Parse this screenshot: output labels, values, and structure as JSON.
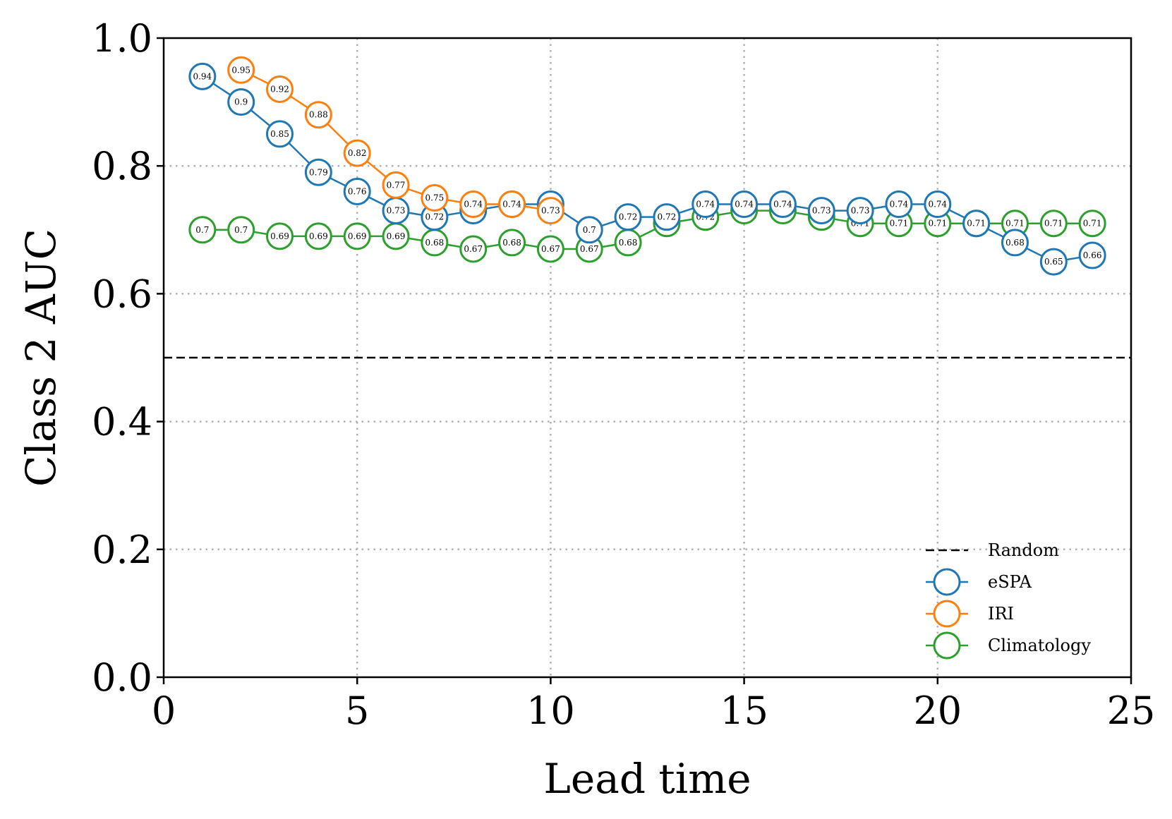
{
  "chart_data": {
    "type": "line",
    "title": "",
    "xlabel": "Lead time",
    "ylabel": "Class 2 AUC",
    "xlim": [
      0,
      25
    ],
    "ylim": [
      0.0,
      1.0
    ],
    "xticks": [
      0,
      5,
      10,
      15,
      20,
      25
    ],
    "xtick_labels": [
      "0",
      "5",
      "10",
      "15",
      "20",
      "25"
    ],
    "yticks": [
      0.0,
      0.2,
      0.4,
      0.6,
      0.8,
      1.0
    ],
    "ytick_labels": [
      "0.0",
      "0.2",
      "0.4",
      "0.6",
      "0.8",
      "1.0"
    ],
    "grid": true,
    "legend_position": "bottom-right",
    "reference_line": {
      "name": "Random",
      "y": 0.5,
      "color": "#000000",
      "style": "dashed"
    },
    "series": [
      {
        "name": "eSPA",
        "color": "#1f77b4",
        "x": [
          1,
          2,
          3,
          4,
          5,
          6,
          7,
          8,
          9,
          10,
          11,
          12,
          13,
          14,
          15,
          16,
          17,
          18,
          19,
          20,
          21,
          22,
          23,
          24
        ],
        "values": [
          0.94,
          0.9,
          0.85,
          0.79,
          0.76,
          0.73,
          0.72,
          0.73,
          0.74,
          0.74,
          0.7,
          0.72,
          0.72,
          0.74,
          0.74,
          0.74,
          0.73,
          0.73,
          0.74,
          0.74,
          0.71,
          0.68,
          0.65,
          0.66
        ],
        "labels": [
          "0.94",
          "0.9",
          "0.85",
          "0.79",
          "0.76",
          "0.73",
          "0.72",
          "0.73",
          "0.74",
          "0.74",
          "0.7",
          "0.72",
          "0.72",
          "0.74",
          "0.74",
          "0.74",
          "0.73",
          "0.73",
          "0.74",
          "0.74",
          "0.71",
          "0.68",
          "0.65",
          "0.66"
        ]
      },
      {
        "name": "IRI",
        "color": "#ff7f0e",
        "x": [
          2,
          3,
          4,
          5,
          6,
          7,
          8,
          9,
          10
        ],
        "values": [
          0.95,
          0.92,
          0.88,
          0.82,
          0.77,
          0.75,
          0.74,
          0.74,
          0.73
        ],
        "labels": [
          "0.95",
          "0.92",
          "0.88",
          "0.82",
          "0.77",
          "0.75",
          "0.74",
          "0.74",
          "0.73"
        ]
      },
      {
        "name": "Climatology",
        "color": "#2ca02c",
        "x": [
          1,
          2,
          3,
          4,
          5,
          6,
          7,
          8,
          9,
          10,
          11,
          12,
          13,
          14,
          15,
          16,
          17,
          18,
          19,
          20,
          21,
          22,
          23,
          24
        ],
        "values": [
          0.7,
          0.7,
          0.69,
          0.69,
          0.69,
          0.69,
          0.68,
          0.67,
          0.68,
          0.67,
          0.67,
          0.68,
          0.71,
          0.72,
          0.73,
          0.73,
          0.72,
          0.71,
          0.71,
          0.71,
          0.71,
          0.71,
          0.71,
          0.71
        ],
        "labels": [
          "0.7",
          "0.7",
          "0.69",
          "0.69",
          "0.69",
          "0.69",
          "0.68",
          "0.67",
          "0.68",
          "0.67",
          "0.67",
          "0.68",
          "0.71",
          "0.72",
          "0.73",
          "0.73",
          "0.72",
          "0.71",
          "0.71",
          "0.71",
          "0.71",
          "0.71",
          "0.71",
          "0.71"
        ]
      }
    ]
  }
}
